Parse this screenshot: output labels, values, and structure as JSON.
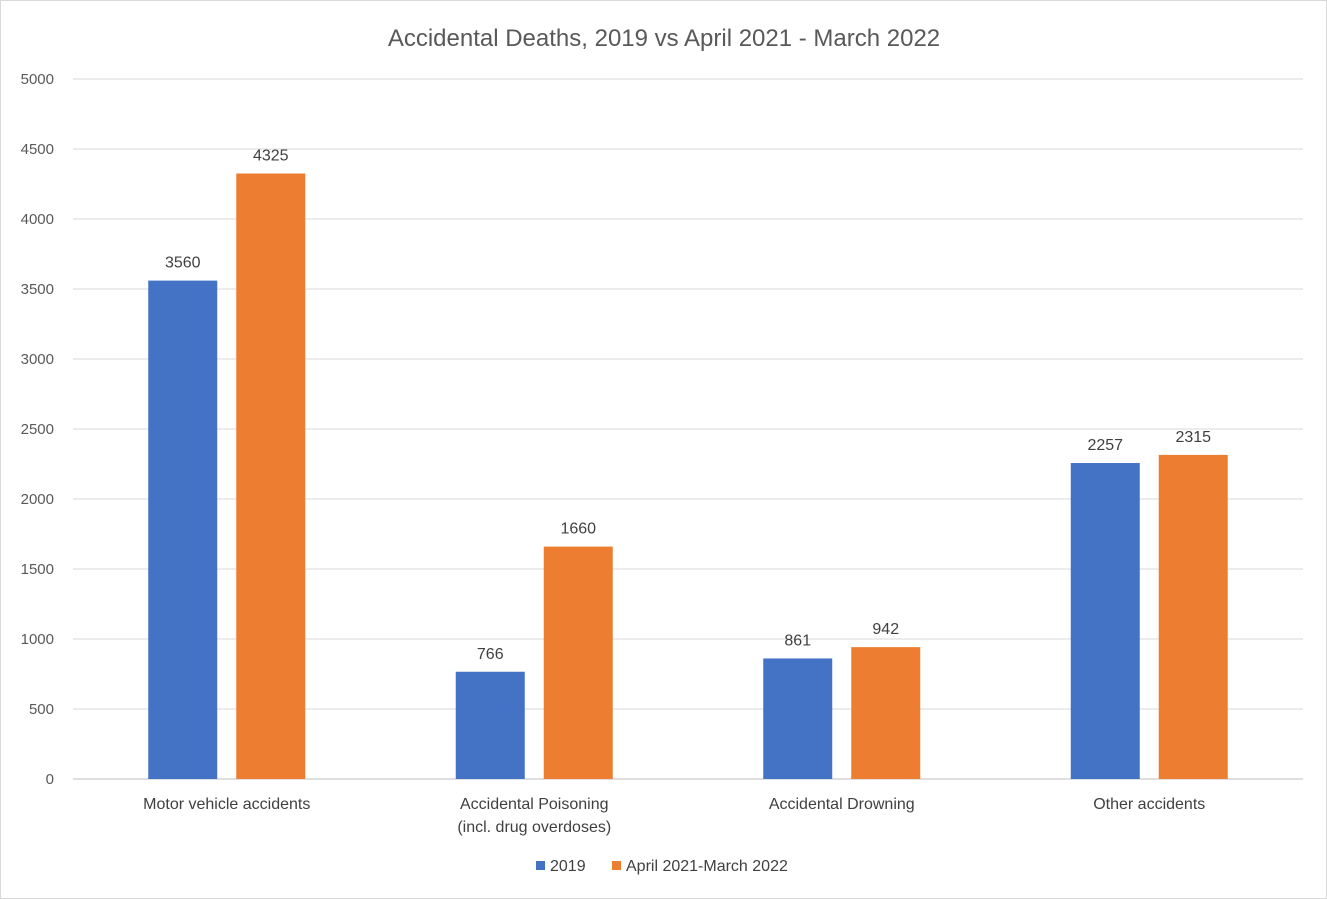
{
  "chart_data": {
    "type": "bar",
    "title": "Accidental Deaths, 2019 vs April 2021 - March 2022",
    "xlabel": "",
    "ylabel": "",
    "ylim": [
      0,
      5000
    ],
    "yticks": [
      "0",
      "500",
      "1000",
      "1500",
      "2000",
      "2500",
      "3000",
      "3500",
      "4000",
      "4500",
      "5000"
    ],
    "categories": [
      [
        "Motor vehicle accidents"
      ],
      [
        "Accidental Poisoning",
        "(incl. drug overdoses)"
      ],
      [
        "Accidental Drowning"
      ],
      [
        "Other accidents"
      ]
    ],
    "series": [
      {
        "name": "2019",
        "color": "#4472c4",
        "values": [
          3560,
          766,
          861,
          2257
        ]
      },
      {
        "name": "April 2021-March 2022",
        "color": "#ed7d31",
        "values": [
          4325,
          1660,
          942,
          2315
        ]
      }
    ],
    "grid": true,
    "legend": "bottom"
  }
}
